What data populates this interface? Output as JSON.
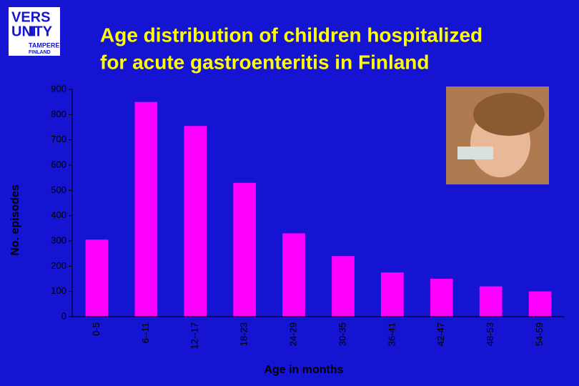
{
  "chart_data": {
    "type": "bar",
    "title": "Age distribution of children hospitalized",
    "subtitle": "for acute  gastroenteritis in Finland",
    "xlabel": "Age in months",
    "ylabel": "No. episodes",
    "categories": [
      "0-5",
      "6--11",
      "12--17",
      "18-23",
      "24-29",
      "30-35",
      "36-41",
      "42-47",
      "48-53",
      "54-59"
    ],
    "values": [
      305,
      850,
      755,
      530,
      330,
      240,
      175,
      150,
      120,
      100
    ],
    "color": "#ff00ff",
    "ylim": [
      0,
      900
    ],
    "yticks": [
      0,
      100,
      200,
      300,
      400,
      500,
      600,
      700,
      800,
      900
    ],
    "grid": false
  },
  "logo": {
    "line1": "UNI",
    "line2": "VERS",
    "line3": "ITY",
    "line4": "TAMPERE",
    "line5": "FINLAND"
  }
}
